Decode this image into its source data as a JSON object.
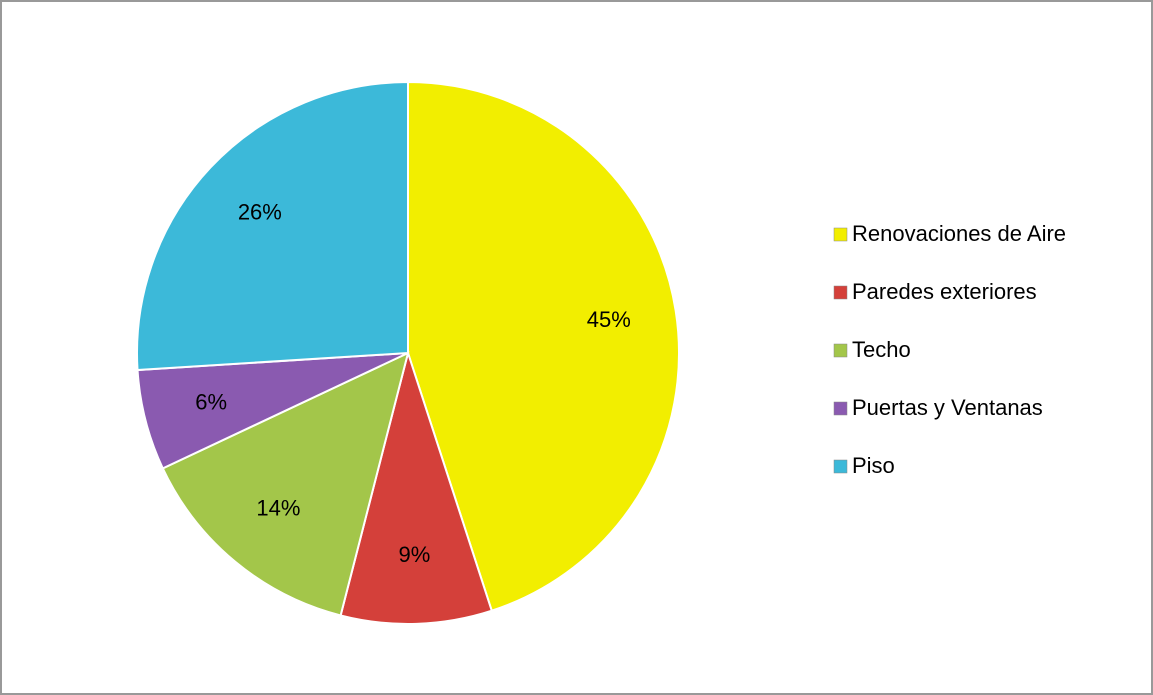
{
  "chart_data": {
    "type": "pie",
    "categories": [
      "Renovaciones de Aire",
      "Paredes exteriores",
      "Techo",
      "Puertas y Ventanas",
      "Piso"
    ],
    "values": [
      45,
      9,
      14,
      6,
      26
    ],
    "value_labels": [
      "45%",
      "9%",
      "14%",
      "6%",
      "26%"
    ],
    "colors": [
      "#f2ee00",
      "#d4403a",
      "#a3c64a",
      "#8a5ab0",
      "#3cb9d9"
    ],
    "legend": "right"
  }
}
